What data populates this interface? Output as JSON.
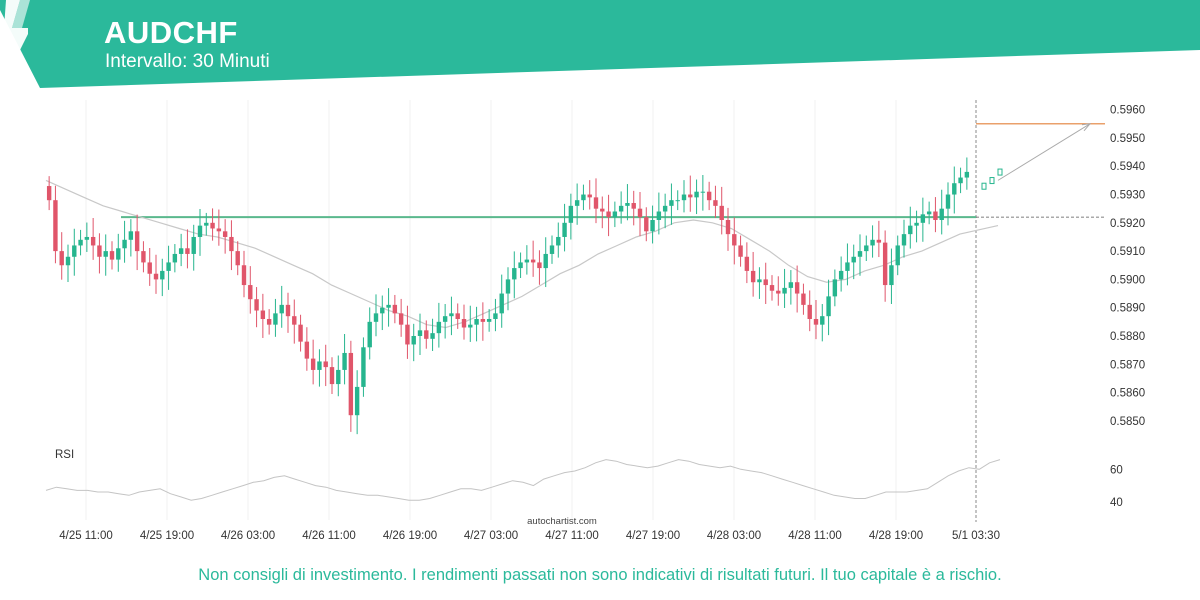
{
  "header": {
    "symbol": "AUDCHF",
    "interval": "Intervallo: 30 Minuti",
    "banner_color": "#2bb99b"
  },
  "chart_data": {
    "type": "candlestick",
    "symbol": "AUDCHF",
    "ylim": [
      0.5845,
      0.5962
    ],
    "y_ticks": [
      "0.5960",
      "0.5950",
      "0.5940",
      "0.5930",
      "0.5920",
      "0.5910",
      "0.5900",
      "0.5890",
      "0.5880",
      "0.5870",
      "0.5860",
      "0.5850"
    ],
    "x_ticks": [
      "4/25 11:00",
      "4/25 19:00",
      "4/26 03:00",
      "4/26 11:00",
      "4/26 19:00",
      "4/27 03:00",
      "4/27 11:00",
      "4/27 19:00",
      "4/28 03:00",
      "4/28 11:00",
      "4/28 19:00"
    ],
    "current_time_label": "5/1 03:30",
    "resistance_level": 0.5922,
    "target_level": 0.5955,
    "up_color": "#26b58e",
    "down_color": "#e0556a",
    "close_series": [
      0.5928,
      0.591,
      0.5905,
      0.5908,
      0.5912,
      0.5914,
      0.5915,
      0.5912,
      0.5908,
      0.591,
      0.5907,
      0.5911,
      0.5914,
      0.5917,
      0.591,
      0.5906,
      0.5902,
      0.59,
      0.5903,
      0.5906,
      0.5909,
      0.5911,
      0.5909,
      0.5915,
      0.5919,
      0.592,
      0.5918,
      0.5917,
      0.5915,
      0.591,
      0.5905,
      0.5898,
      0.5893,
      0.5889,
      0.5886,
      0.5884,
      0.5888,
      0.5891,
      0.5887,
      0.5884,
      0.5878,
      0.5872,
      0.5868,
      0.5871,
      0.5869,
      0.5863,
      0.5868,
      0.5874,
      0.5852,
      0.5862,
      0.5876,
      0.5885,
      0.5888,
      0.589,
      0.5891,
      0.5888,
      0.5884,
      0.5877,
      0.588,
      0.5882,
      0.5879,
      0.5881,
      0.5885,
      0.5887,
      0.5888,
      0.5886,
      0.5883,
      0.5884,
      0.5886,
      0.5885,
      0.5886,
      0.5888,
      0.5895,
      0.59,
      0.5904,
      0.5906,
      0.5907,
      0.5906,
      0.5904,
      0.5909,
      0.5912,
      0.5915,
      0.592,
      0.5926,
      0.5928,
      0.593,
      0.5929,
      0.5925,
      0.5924,
      0.5922,
      0.5924,
      0.5926,
      0.5927,
      0.5925,
      0.5922,
      0.5917,
      0.5921,
      0.5924,
      0.5926,
      0.5928,
      0.5928,
      0.593,
      0.5929,
      0.5931,
      0.5931,
      0.5928,
      0.5926,
      0.5921,
      0.5916,
      0.5912,
      0.5908,
      0.5903,
      0.5899,
      0.59,
      0.5898,
      0.5896,
      0.5895,
      0.5897,
      0.5899,
      0.5895,
      0.5891,
      0.5886,
      0.5884,
      0.5887,
      0.5894,
      0.59,
      0.5903,
      0.5906,
      0.5908,
      0.591,
      0.5912,
      0.5914,
      0.5913,
      0.5898,
      0.5905,
      0.5912,
      0.5916,
      0.5919,
      0.592,
      0.5923,
      0.5924,
      0.5921,
      0.5925,
      0.593,
      0.5934,
      0.5936,
      0.5938
    ],
    "sma_series": [
      0.5935,
      0.5932,
      0.5929,
      0.5926,
      0.5924,
      0.5922,
      0.592,
      0.5918,
      0.5916,
      0.5915,
      0.5913,
      0.5911,
      0.5908,
      0.5905,
      0.5902,
      0.5898,
      0.5895,
      0.5892,
      0.5889,
      0.5887,
      0.5884,
      0.5883,
      0.5885,
      0.5888,
      0.5891,
      0.5894,
      0.5898,
      0.5902,
      0.5905,
      0.5909,
      0.5912,
      0.5915,
      0.5917,
      0.592,
      0.5921,
      0.592,
      0.5918,
      0.5914,
      0.591,
      0.5905,
      0.5901,
      0.5899,
      0.59,
      0.5903,
      0.5905,
      0.5908,
      0.591,
      0.5913,
      0.5916,
      0.5919
    ],
    "sma_x_fraction": [
      0.0,
      0.02,
      0.04,
      0.06,
      0.08,
      0.1,
      0.12,
      0.14,
      0.16,
      0.18,
      0.2,
      0.22,
      0.24,
      0.26,
      0.28,
      0.3,
      0.32,
      0.34,
      0.36,
      0.38,
      0.4,
      0.42,
      0.44,
      0.46,
      0.48,
      0.5,
      0.52,
      0.54,
      0.56,
      0.58,
      0.6,
      0.62,
      0.64,
      0.66,
      0.68,
      0.7,
      0.72,
      0.74,
      0.76,
      0.78,
      0.8,
      0.82,
      0.84,
      0.86,
      0.88,
      0.9,
      0.92,
      0.94,
      0.96,
      1.0
    ],
    "rsi": {
      "label": "RSI",
      "ticks": [
        "60",
        "40"
      ],
      "ylim": [
        30,
        75
      ],
      "values": [
        47,
        49,
        48,
        47,
        47,
        46,
        46,
        45,
        44,
        46,
        47,
        48,
        45,
        43,
        41,
        42,
        44,
        46,
        48,
        50,
        52,
        53,
        55,
        56,
        54,
        52,
        50,
        49,
        47,
        46,
        45,
        44,
        44,
        43,
        42,
        41,
        41,
        42,
        44,
        46,
        48,
        48,
        47,
        49,
        51,
        53,
        52,
        50,
        54,
        56,
        58,
        59,
        61,
        64,
        66,
        65,
        63,
        62,
        61,
        62,
        64,
        66,
        65,
        63,
        62,
        61,
        62,
        60,
        59,
        58,
        56,
        54,
        52,
        50,
        48,
        46,
        44,
        43,
        42,
        42,
        44,
        46,
        46,
        46,
        47,
        48,
        52,
        56,
        59,
        61,
        60,
        64,
        66
      ]
    },
    "watermark": "autochartist.com"
  },
  "footer": {
    "disclaimer": "Non consigli di investimento. I rendimenti passati non sono indicativi di risultati futuri. Il tuo capitale è a rischio."
  }
}
